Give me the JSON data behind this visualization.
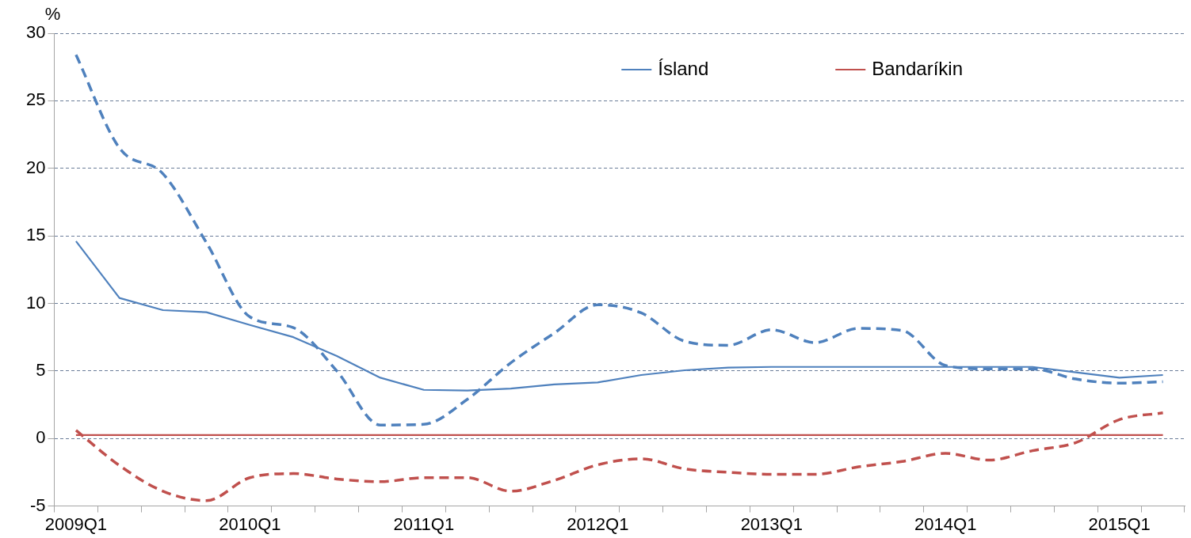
{
  "chart_data": {
    "type": "line",
    "ylabel": "%",
    "categories": [
      "2009Q1",
      null,
      null,
      null,
      "2010Q1",
      null,
      null,
      null,
      "2011Q1",
      null,
      null,
      null,
      "2012Q1",
      null,
      null,
      null,
      "2013Q1",
      null,
      null,
      null,
      "2014Q1",
      null,
      null,
      null,
      "2015Q1",
      null
    ],
    "ylim": [
      -5,
      30
    ],
    "yticks": [
      -5,
      0,
      5,
      10,
      15,
      20,
      25,
      30
    ],
    "grid": "y",
    "legend": "top right",
    "marker": "none",
    "series": [
      {
        "name": "Ísland",
        "color": "#4f81bd",
        "line_style": "solid",
        "values": [
          14.6,
          10.4,
          9.5,
          9.35,
          8.4,
          7.5,
          6.1,
          4.5,
          3.6,
          3.55,
          3.7,
          4.0,
          4.15,
          4.7,
          5.05,
          5.25,
          5.3,
          5.3,
          5.3,
          5.3,
          5.3,
          5.3,
          5.3,
          4.9,
          4.5,
          4.7
        ]
      },
      {
        "name": "Bandaríkin",
        "color": "#c0504d",
        "line_style": "solid",
        "values": [
          0.25,
          0.25,
          0.25,
          0.25,
          0.25,
          0.25,
          0.25,
          0.25,
          0.25,
          0.25,
          0.25,
          0.25,
          0.25,
          0.25,
          0.25,
          0.25,
          0.25,
          0.25,
          0.25,
          0.25,
          0.25,
          0.25,
          0.25,
          0.25,
          0.25,
          0.25
        ]
      },
      {
        "color": "#4f81bd",
        "line_style": "dashed",
        "values": [
          28.4,
          21.5,
          19.6,
          14.5,
          9.0,
          8.2,
          5.0,
          1.0,
          1.05,
          2.9,
          5.6,
          7.8,
          9.9,
          9.3,
          7.2,
          6.9,
          8.05,
          7.1,
          8.15,
          8.0,
          5.4,
          5.15,
          5.15,
          4.4,
          4.1,
          4.2
        ]
      },
      {
        "color": "#c0504d",
        "line_style": "dashed",
        "values": [
          0.6,
          -2.0,
          -3.9,
          -4.6,
          -2.9,
          -2.6,
          -3.0,
          -3.2,
          -2.9,
          -2.9,
          -3.9,
          -3.1,
          -1.95,
          -1.5,
          -2.25,
          -2.5,
          -2.65,
          -2.65,
          -2.1,
          -1.7,
          -1.1,
          -1.6,
          -0.9,
          -0.3,
          1.4,
          1.9
        ]
      }
    ]
  }
}
